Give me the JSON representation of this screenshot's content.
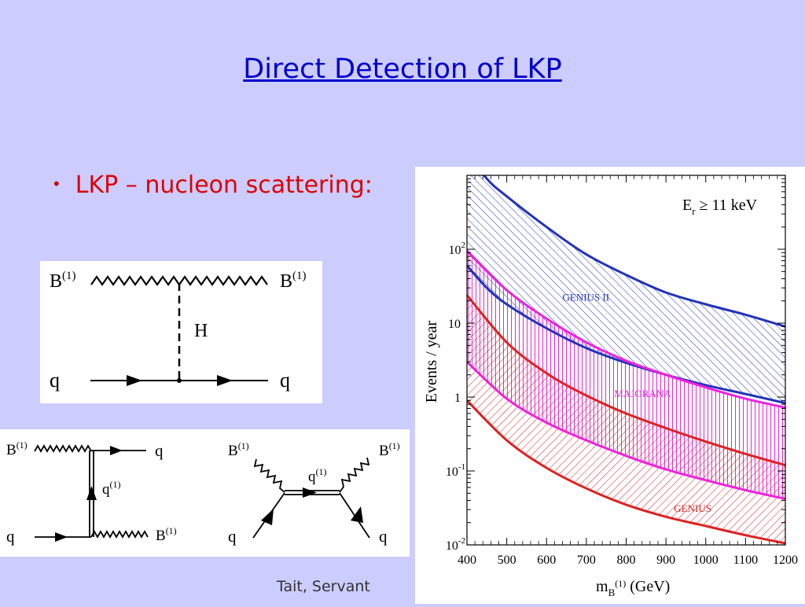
{
  "slide": {
    "title": "Direct Detection of LKP",
    "bullet": "LKP – nucleon scattering:",
    "credit": "Tait, Servant"
  },
  "diagram1": {
    "in_boson": "B",
    "out_boson": "B",
    "superscript": "(1)",
    "mediator": "H",
    "in_quark": "q",
    "out_quark": "q"
  },
  "diagram2": {
    "t_channel": {
      "boson_in": "B",
      "boson_sup": "(1)",
      "quark_out": "q",
      "internal": "q",
      "internal_sup": "(1)",
      "quark_in": "q",
      "boson_out": "B",
      "boson_out_sup": "(1)"
    },
    "s_channel": {
      "boson_in": "B",
      "boson_sup": "(1)",
      "boson_out": "B",
      "boson_out_sup": "(1)",
      "internal": "q",
      "internal_sup": "(1)",
      "quark_in": "q",
      "quark_out": "q"
    }
  },
  "chart_data": {
    "type": "area",
    "annotation": "E",
    "annotation_sub": "r",
    "annotation_rest": " ≥ 11 keV",
    "xlabel": "m",
    "xlabel_sub": "B",
    "xlabel_sup": "(1)",
    "xlabel_unit": " (GeV)",
    "ylabel": "Events / year",
    "xlim": [
      400,
      1200
    ],
    "ylim": [
      0.01,
      1000
    ],
    "y_scale": "log",
    "x_ticks": [
      400,
      500,
      600,
      700,
      800,
      900,
      1000,
      1100,
      1200
    ],
    "y_ticks": [
      {
        "value": 0.01,
        "base": "10",
        "exp": "-2"
      },
      {
        "value": 0.1,
        "base": "10",
        "exp": "-1"
      },
      {
        "value": 1,
        "base": "1",
        "exp": ""
      },
      {
        "value": 10,
        "base": "10",
        "exp": ""
      },
      {
        "value": 100,
        "base": "10",
        "exp": "2"
      }
    ],
    "bands": [
      {
        "name": "GENIUS II",
        "color": "#2233bb",
        "hatch": "diag-back",
        "upper": {
          "x": [
            400,
            450,
            500,
            600,
            700,
            800,
            900,
            1000,
            1100,
            1200
          ],
          "y": [
            2200,
            900,
            520,
            200,
            85,
            45,
            26,
            18,
            13,
            9
          ]
        },
        "lower": {
          "x": [
            400,
            450,
            500,
            600,
            700,
            800,
            900,
            1000,
            1100,
            1200
          ],
          "y": [
            60,
            30,
            18,
            8.5,
            4.6,
            2.9,
            2.0,
            1.45,
            1.1,
            0.83
          ]
        }
      },
      {
        "name": "MAJORANA",
        "color": "#ee22dd",
        "hatch": "vertical",
        "upper": {
          "x": [
            400,
            500,
            600,
            700,
            800,
            900,
            1000,
            1100,
            1200
          ],
          "y": [
            95,
            28,
            11.5,
            5.5,
            3.1,
            2.0,
            1.35,
            0.95,
            0.72
          ]
        },
        "lower": {
          "x": [
            400,
            500,
            600,
            700,
            800,
            900,
            1000,
            1100,
            1200
          ],
          "y": [
            3.0,
            0.95,
            0.45,
            0.26,
            0.16,
            0.105,
            0.075,
            0.055,
            0.042
          ]
        }
      },
      {
        "name": "GENIUS",
        "color": "#dd2222",
        "hatch": "diag-fwd",
        "upper": {
          "x": [
            400,
            500,
            600,
            700,
            800,
            900,
            1000,
            1100,
            1200
          ],
          "y": [
            24,
            5.5,
            2.1,
            1.05,
            0.6,
            0.38,
            0.25,
            0.17,
            0.12
          ]
        },
        "lower": {
          "x": [
            400,
            500,
            600,
            700,
            800,
            900,
            1000,
            1100,
            1200
          ],
          "y": [
            0.9,
            0.26,
            0.11,
            0.058,
            0.035,
            0.024,
            0.018,
            0.0135,
            0.0105
          ]
        }
      }
    ]
  }
}
